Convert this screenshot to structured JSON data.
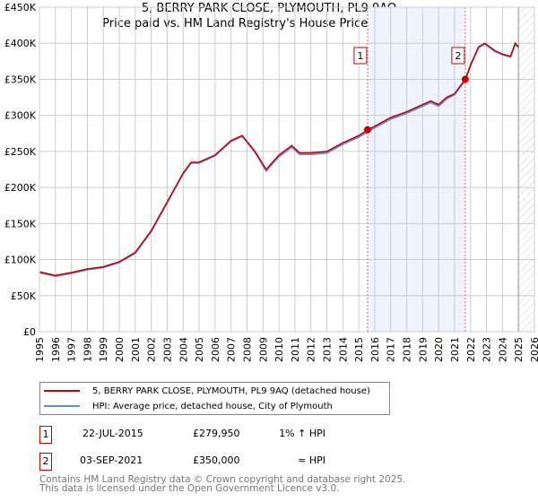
{
  "chart_data": {
    "type": "line",
    "title": "5, BERRY PARK CLOSE, PLYMOUTH, PL9 9AQ",
    "subtitle": "Price paid vs. HM Land Registry's House Price Index (HPI)",
    "xlim": [
      1995,
      2026
    ],
    "ylim": [
      0,
      450000
    ],
    "x_ticks": [
      "1995",
      "1996",
      "1997",
      "1998",
      "1999",
      "2000",
      "2001",
      "2002",
      "2003",
      "2004",
      "2005",
      "2006",
      "2007",
      "2008",
      "2009",
      "2010",
      "2011",
      "2012",
      "2013",
      "2014",
      "2015",
      "2016",
      "2017",
      "2018",
      "2019",
      "2020",
      "2021",
      "2022",
      "2023",
      "2024",
      "2025",
      "2026"
    ],
    "y_ticks": [
      "£0",
      "£50K",
      "£100K",
      "£150K",
      "£200K",
      "£250K",
      "£300K",
      "£350K",
      "£400K",
      "£450K"
    ],
    "grid": true,
    "series": [
      {
        "name": "5, BERRY PARK CLOSE, PLYMOUTH, PL9 9AQ (detached house)",
        "color": "#cc0000",
        "x": [
          1995,
          1996,
          1997,
          1998,
          1999,
          2000,
          2001,
          2002,
          2003,
          2004,
          2004.5,
          2005,
          2006,
          2007,
          2007.7,
          2008.5,
          2009.2,
          2010,
          2010.8,
          2011.3,
          2012,
          2013,
          2014,
          2015,
          2015.55,
          2016,
          2017,
          2018,
          2019,
          2019.5,
          2020,
          2020.5,
          2021,
          2021.67,
          2022,
          2022.5,
          2022.9,
          2023.5,
          2024,
          2024.5,
          2024.8,
          2025
        ],
        "y": [
          83000,
          78000,
          82000,
          87000,
          90000,
          97000,
          110000,
          140000,
          180000,
          220000,
          235000,
          235000,
          245000,
          265000,
          272000,
          250000,
          225000,
          245000,
          258000,
          248000,
          248000,
          250000,
          262000,
          272000,
          279950,
          285000,
          297000,
          305000,
          315000,
          320000,
          315000,
          325000,
          330000,
          350000,
          370000,
          395000,
          400000,
          390000,
          385000,
          382000,
          400000,
          395000
        ]
      },
      {
        "name": "HPI: Average price, detached house, City of Plymouth",
        "color": "#5b8fd6",
        "x": [
          1995,
          1996,
          1997,
          1998,
          1999,
          2000,
          2001,
          2002,
          2003,
          2004,
          2004.5,
          2005,
          2006,
          2007,
          2007.7,
          2008.5,
          2009.2,
          2010,
          2010.8,
          2011.3,
          2012,
          2013,
          2014,
          2015,
          2015.55,
          2016,
          2017,
          2018,
          2019,
          2019.5,
          2020,
          2020.5,
          2021,
          2021.67,
          2022,
          2022.5,
          2022.9,
          2023.5,
          2024,
          2024.5,
          2024.8,
          2025
        ],
        "y": [
          82000,
          77000,
          81000,
          86000,
          89000,
          96000,
          109000,
          139000,
          179000,
          219000,
          234000,
          234000,
          244000,
          264000,
          271000,
          249000,
          223000,
          243000,
          256000,
          246000,
          246000,
          248000,
          260000,
          270000,
          277000,
          283000,
          295000,
          303000,
          313000,
          318000,
          313000,
          323000,
          329000,
          349000,
          369000,
          394000,
          399000,
          389000,
          384000,
          381000,
          399000,
          394000
        ]
      }
    ],
    "annotations": [
      {
        "label": "1",
        "x": 2015.55,
        "y": 279950
      },
      {
        "label": "2",
        "x": 2021.67,
        "y": 350000
      }
    ],
    "forecast_from": 2025.0
  },
  "legend": {
    "items": [
      "5, BERRY PARK CLOSE, PLYMOUTH, PL9 9AQ (detached house)",
      "HPI: Average price, detached house, City of Plymouth"
    ]
  },
  "sales": [
    {
      "num": "1",
      "date": "22-JUL-2015",
      "price": "£279,950",
      "hpi": "1% ↑ HPI"
    },
    {
      "num": "2",
      "date": "03-SEP-2021",
      "price": "£350,000",
      "hpi": "≈ HPI"
    }
  ],
  "footer": {
    "line1": "Contains HM Land Registry data © Crown copyright and database right 2025.",
    "line2": "This data is licensed under the Open Government Licence v3.0."
  },
  "colors": {
    "red": "#cc0000",
    "blue": "#5b8fd6",
    "shade": "#eef3fd"
  }
}
